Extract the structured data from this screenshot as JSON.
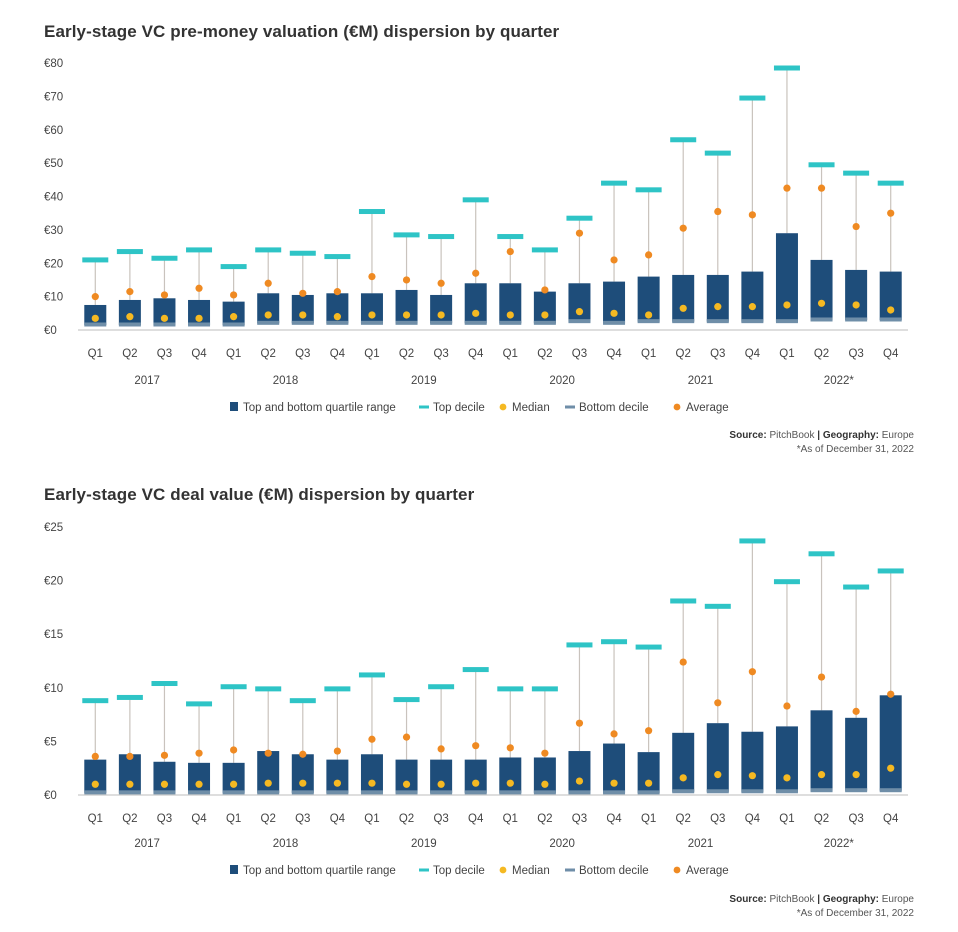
{
  "colors": {
    "quartile_box": "#1e4d7a",
    "top_decile": "#2ec4c6",
    "median": "#f5b922",
    "bottom_decile": "#6f8ea8",
    "average": "#ef8a22",
    "whisker": "#c9c3bd",
    "axis_text": "#444444"
  },
  "footer": {
    "source_label": "Source:",
    "source_value": "PitchBook",
    "separator": "|",
    "geo_label": "Geography:",
    "geo_value": "Europe",
    "note": "*As of December 31, 2022"
  },
  "chart_data": [
    {
      "type": "box",
      "title": "Early-stage VC pre-money valuation (€M) dispersion by quarter",
      "ylim": [
        0,
        80
      ],
      "yticks": [
        0,
        10,
        20,
        30,
        40,
        50,
        60,
        70,
        80
      ],
      "ytick_labels": [
        "€0",
        "€10",
        "€20",
        "€30",
        "€40",
        "€50",
        "€60",
        "€70",
        "€80"
      ],
      "quarters": [
        "Q1",
        "Q2",
        "Q3",
        "Q4",
        "Q1",
        "Q2",
        "Q3",
        "Q4",
        "Q1",
        "Q2",
        "Q3",
        "Q4",
        "Q1",
        "Q2",
        "Q3",
        "Q4",
        "Q1",
        "Q2",
        "Q3",
        "Q4",
        "Q1",
        "Q2",
        "Q3",
        "Q4"
      ],
      "years": [
        {
          "label": "2017",
          "start": 0,
          "end": 3
        },
        {
          "label": "2018",
          "start": 4,
          "end": 7
        },
        {
          "label": "2019",
          "start": 8,
          "end": 11
        },
        {
          "label": "2020",
          "start": 12,
          "end": 15
        },
        {
          "label": "2021",
          "start": 16,
          "end": 19
        },
        {
          "label": "2022*",
          "start": 20,
          "end": 23
        }
      ],
      "legend": [
        "Top and bottom quartile range",
        "Top decile",
        "Median",
        "Bottom decile",
        "Average"
      ],
      "series": [
        {
          "name": "Bottom decile",
          "values": [
            1.5,
            1.5,
            1.5,
            1.5,
            1.5,
            2,
            2,
            2,
            2,
            2,
            2,
            2,
            2,
            2,
            2.5,
            2,
            2.5,
            2.5,
            2.5,
            2.5,
            2.5,
            3,
            3,
            3
          ]
        },
        {
          "name": "Top quartile",
          "values": [
            7.5,
            9,
            9.5,
            9,
            8.5,
            11,
            10.5,
            11,
            11,
            12,
            10.5,
            14,
            14,
            11.5,
            14,
            14.5,
            16,
            16.5,
            16.5,
            17.5,
            29,
            21,
            18,
            17.5
          ]
        },
        {
          "name": "Top decile",
          "values": [
            21,
            23.5,
            21.5,
            24,
            19,
            24,
            23,
            22,
            35.5,
            28.5,
            28,
            39,
            28,
            24,
            33.5,
            44,
            42,
            57,
            53,
            69.5,
            78.5,
            49.5,
            47,
            44
          ]
        },
        {
          "name": "Median",
          "values": [
            3.5,
            4,
            3.5,
            3.5,
            4,
            4.5,
            4.5,
            4,
            4.5,
            4.5,
            4.5,
            5,
            4.5,
            4.5,
            5.5,
            5,
            4.5,
            6.5,
            7,
            7,
            7.5,
            8,
            7.5,
            6
          ]
        },
        {
          "name": "Average",
          "values": [
            10,
            11.5,
            10.5,
            12.5,
            10.5,
            14,
            11,
            11.5,
            16,
            15,
            14,
            17,
            23.5,
            12,
            29,
            21,
            22.5,
            30.5,
            35.5,
            34.5,
            42.5,
            42.5,
            31,
            35
          ]
        }
      ]
    },
    {
      "type": "box",
      "title": "Early-stage VC deal value (€M) dispersion by quarter",
      "ylim": [
        0,
        25
      ],
      "yticks": [
        0,
        5,
        10,
        15,
        20,
        25
      ],
      "ytick_labels": [
        "€0",
        "€5",
        "€10",
        "€15",
        "€20",
        "€25"
      ],
      "quarters": [
        "Q1",
        "Q2",
        "Q3",
        "Q4",
        "Q1",
        "Q2",
        "Q3",
        "Q4",
        "Q1",
        "Q2",
        "Q3",
        "Q4",
        "Q1",
        "Q2",
        "Q3",
        "Q4",
        "Q1",
        "Q2",
        "Q3",
        "Q4",
        "Q1",
        "Q2",
        "Q3",
        "Q4"
      ],
      "years": [
        {
          "label": "2017",
          "start": 0,
          "end": 3
        },
        {
          "label": "2018",
          "start": 4,
          "end": 7
        },
        {
          "label": "2019",
          "start": 8,
          "end": 11
        },
        {
          "label": "2020",
          "start": 12,
          "end": 15
        },
        {
          "label": "2021",
          "start": 16,
          "end": 19
        },
        {
          "label": "2022*",
          "start": 20,
          "end": 23
        }
      ],
      "legend": [
        "Top and bottom quartile range",
        "Top decile",
        "Median",
        "Bottom decile",
        "Average"
      ],
      "series": [
        {
          "name": "Bottom decile",
          "values": [
            0.2,
            0.2,
            0.2,
            0.2,
            0.2,
            0.2,
            0.2,
            0.2,
            0.2,
            0.2,
            0.2,
            0.2,
            0.2,
            0.2,
            0.2,
            0.2,
            0.2,
            0.3,
            0.3,
            0.3,
            0.3,
            0.4,
            0.4,
            0.4
          ]
        },
        {
          "name": "Top quartile",
          "values": [
            3.3,
            3.8,
            3.1,
            3,
            3,
            4.1,
            3.8,
            3.3,
            3.8,
            3.3,
            3.3,
            3.3,
            3.5,
            3.5,
            4.1,
            4.8,
            4,
            5.8,
            6.7,
            5.9,
            6.4,
            7.9,
            7.2,
            9.3
          ]
        },
        {
          "name": "Top decile",
          "values": [
            8.8,
            9.1,
            10.4,
            8.5,
            10.1,
            9.9,
            8.8,
            9.9,
            11.2,
            8.9,
            10.1,
            11.7,
            9.9,
            9.9,
            14,
            14.3,
            13.8,
            18.1,
            17.6,
            23.7,
            19.9,
            22.5,
            19.4,
            20.9
          ]
        },
        {
          "name": "Median",
          "values": [
            1,
            1,
            1,
            1,
            1,
            1.1,
            1.1,
            1.1,
            1.1,
            1,
            1,
            1.1,
            1.1,
            1,
            1.3,
            1.1,
            1.1,
            1.6,
            1.9,
            1.8,
            1.6,
            1.9,
            1.9,
            2.5
          ]
        },
        {
          "name": "Average",
          "values": [
            3.6,
            3.6,
            3.7,
            3.9,
            4.2,
            3.9,
            3.8,
            4.1,
            5.2,
            5.4,
            4.3,
            4.6,
            4.4,
            3.9,
            6.7,
            5.7,
            6,
            12.4,
            8.6,
            11.5,
            8.3,
            11,
            7.8,
            9.4
          ]
        }
      ]
    }
  ]
}
